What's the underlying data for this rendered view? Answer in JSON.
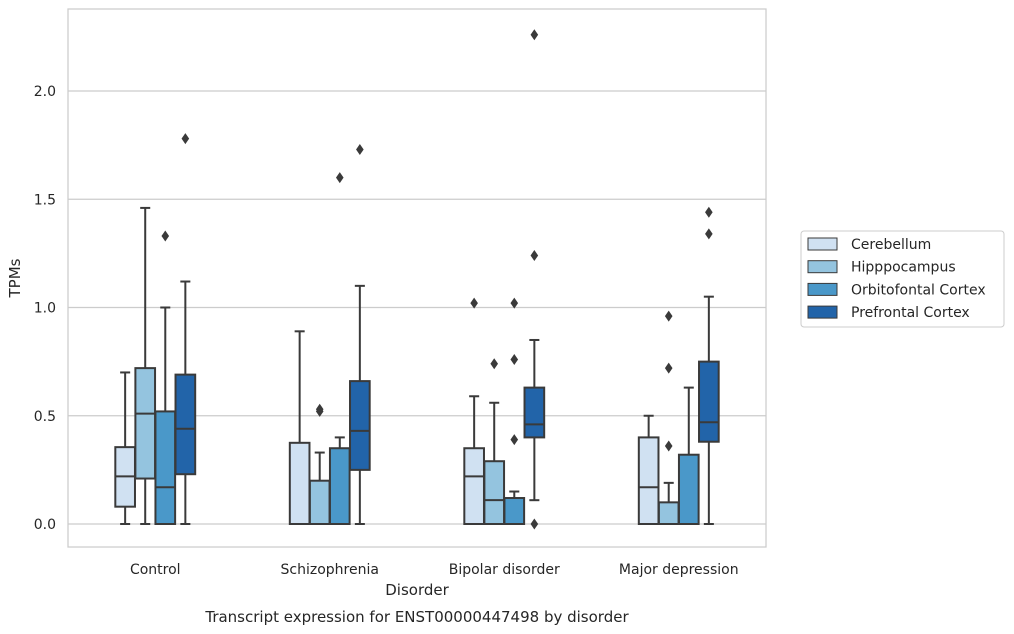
{
  "chart_data": {
    "type": "box",
    "title": "",
    "caption": "Transcript expression for ENST00000447498 by disorder",
    "xlabel": "Disorder",
    "ylabel": "TPMs",
    "ylim": [
      -0.11,
      2.38
    ],
    "yticks": [
      "0.0",
      "0.5",
      "1.0",
      "1.5",
      "2.0"
    ],
    "ytick_values": [
      0.0,
      0.5,
      1.0,
      1.5,
      2.0
    ],
    "grid": "horizontal",
    "legend_position": "right",
    "categories": [
      "Control",
      "Schizophrenia",
      "Bipolar disorder",
      "Major depression"
    ],
    "series": [
      {
        "name": "Cerebellum",
        "color": "#d0e1f2",
        "boxes": [
          {
            "whislo": 0.0,
            "q1": 0.08,
            "med": 0.22,
            "q3": 0.355,
            "whishi": 0.7,
            "fliers": []
          },
          {
            "whislo": 0.0,
            "q1": 0.0,
            "med": 0.0,
            "q3": 0.375,
            "whishi": 0.89,
            "fliers": []
          },
          {
            "whislo": 0.0,
            "q1": 0.0,
            "med": 0.22,
            "q3": 0.35,
            "whishi": 0.59,
            "fliers": [
              1.02
            ]
          },
          {
            "whislo": 0.0,
            "q1": 0.0,
            "med": 0.17,
            "q3": 0.4,
            "whishi": 0.5,
            "fliers": []
          }
        ]
      },
      {
        "name": "Hipppocampus",
        "color": "#94c4df",
        "boxes": [
          {
            "whislo": 0.0,
            "q1": 0.21,
            "med": 0.51,
            "q3": 0.72,
            "whishi": 1.46,
            "fliers": []
          },
          {
            "whislo": 0.0,
            "q1": 0.0,
            "med": 0.0,
            "q3": 0.2,
            "whishi": 0.33,
            "fliers": [
              0.52,
              0.53
            ]
          },
          {
            "whislo": 0.0,
            "q1": 0.0,
            "med": 0.11,
            "q3": 0.29,
            "whishi": 0.56,
            "fliers": [
              0.74
            ]
          },
          {
            "whislo": 0.0,
            "q1": 0.0,
            "med": 0.0,
            "q3": 0.1,
            "whishi": 0.19,
            "fliers": [
              0.36,
              0.72,
              0.96
            ]
          }
        ]
      },
      {
        "name": "Orbitofontal Cortex",
        "color": "#4a98c9",
        "boxes": [
          {
            "whislo": 0.0,
            "q1": 0.0,
            "med": 0.17,
            "q3": 0.52,
            "whishi": 1.0,
            "fliers": [
              1.33
            ]
          },
          {
            "whislo": 0.0,
            "q1": 0.0,
            "med": 0.0,
            "q3": 0.35,
            "whishi": 0.4,
            "fliers": [
              1.6
            ]
          },
          {
            "whislo": 0.0,
            "q1": 0.0,
            "med": 0.0,
            "q3": 0.12,
            "whishi": 0.15,
            "fliers": [
              0.39,
              0.76,
              1.02
            ]
          },
          {
            "whislo": 0.0,
            "q1": 0.0,
            "med": 0.0,
            "q3": 0.32,
            "whishi": 0.63,
            "fliers": []
          }
        ]
      },
      {
        "name": "Prefrontal Cortex",
        "color": "#2264a9",
        "boxes": [
          {
            "whislo": 0.0,
            "q1": 0.23,
            "med": 0.44,
            "q3": 0.69,
            "whishi": 1.12,
            "fliers": [
              1.78
            ]
          },
          {
            "whislo": 0.0,
            "q1": 0.25,
            "med": 0.43,
            "q3": 0.66,
            "whishi": 1.1,
            "fliers": [
              1.73
            ]
          },
          {
            "whislo": 0.11,
            "q1": 0.4,
            "med": 0.46,
            "q3": 0.63,
            "whishi": 0.85,
            "fliers": [
              0.0,
              1.24,
              2.26
            ]
          },
          {
            "whislo": 0.0,
            "q1": 0.38,
            "med": 0.47,
            "q3": 0.75,
            "whishi": 1.05,
            "fliers": [
              1.34,
              1.44
            ]
          }
        ]
      }
    ]
  }
}
